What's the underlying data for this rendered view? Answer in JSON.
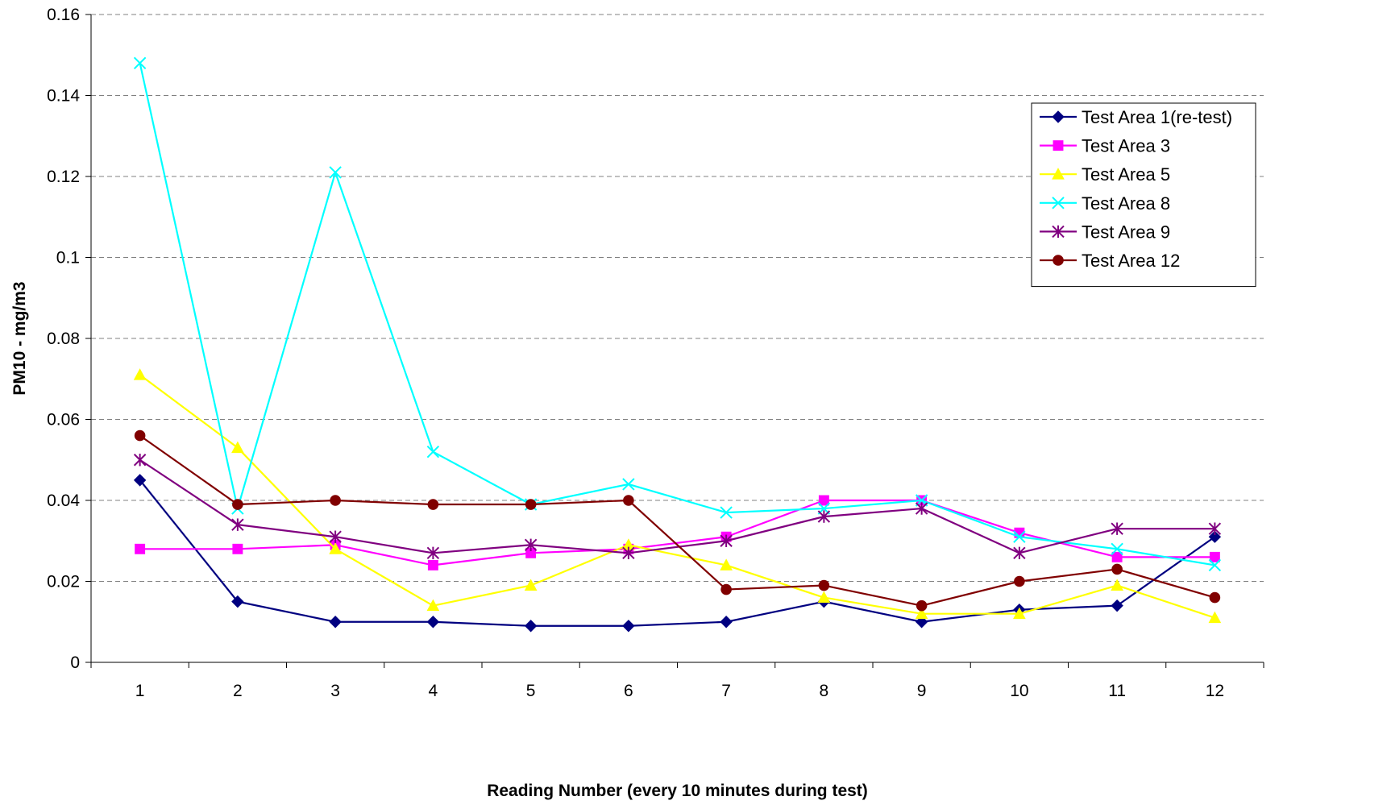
{
  "chart_data": {
    "type": "line",
    "title": "",
    "xlabel": "Reading Number (every 10 minutes during test)",
    "ylabel": "PM10  -  mg/m3",
    "categories": [
      "1",
      "2",
      "3",
      "4",
      "5",
      "6",
      "7",
      "8",
      "9",
      "10",
      "11",
      "12"
    ],
    "ylim": [
      0,
      0.16
    ],
    "yticks": [
      "0",
      "0.02",
      "0.04",
      "0.06",
      "0.08",
      "0.1",
      "0.12",
      "0.14",
      "0.16"
    ],
    "grid": "horizontal dashed",
    "legend_position": "right",
    "series": [
      {
        "name": "Test Area 1(re-test)",
        "color": "#000080",
        "marker": "diamond",
        "values": [
          0.045,
          0.015,
          0.01,
          0.01,
          0.009,
          0.009,
          0.01,
          0.015,
          0.01,
          0.013,
          0.014,
          0.031
        ]
      },
      {
        "name": "Test Area 3",
        "color": "#FF00FF",
        "marker": "square",
        "values": [
          0.028,
          0.028,
          0.029,
          0.024,
          0.027,
          0.028,
          0.031,
          0.04,
          0.04,
          0.032,
          0.026,
          0.026
        ]
      },
      {
        "name": "Test Area 5",
        "color": "#FFFF00",
        "marker": "triangle",
        "values": [
          0.071,
          0.053,
          0.028,
          0.014,
          0.019,
          0.029,
          0.024,
          0.016,
          0.012,
          0.012,
          0.019,
          0.011
        ]
      },
      {
        "name": "Test Area 8",
        "color": "#00FFFF",
        "marker": "x",
        "values": [
          0.148,
          0.038,
          0.121,
          0.052,
          0.039,
          0.044,
          0.037,
          0.038,
          0.04,
          0.031,
          0.028,
          0.024
        ]
      },
      {
        "name": "Test Area 9",
        "color": "#800080",
        "marker": "star",
        "values": [
          0.05,
          0.034,
          0.031,
          0.027,
          0.029,
          0.027,
          0.03,
          0.036,
          0.038,
          0.027,
          0.033,
          0.033
        ]
      },
      {
        "name": "Test Area 12",
        "color": "#800000",
        "marker": "circle",
        "values": [
          0.056,
          0.039,
          0.04,
          0.039,
          0.039,
          0.04,
          0.018,
          0.019,
          0.014,
          0.02,
          0.023,
          0.016
        ]
      }
    ]
  }
}
